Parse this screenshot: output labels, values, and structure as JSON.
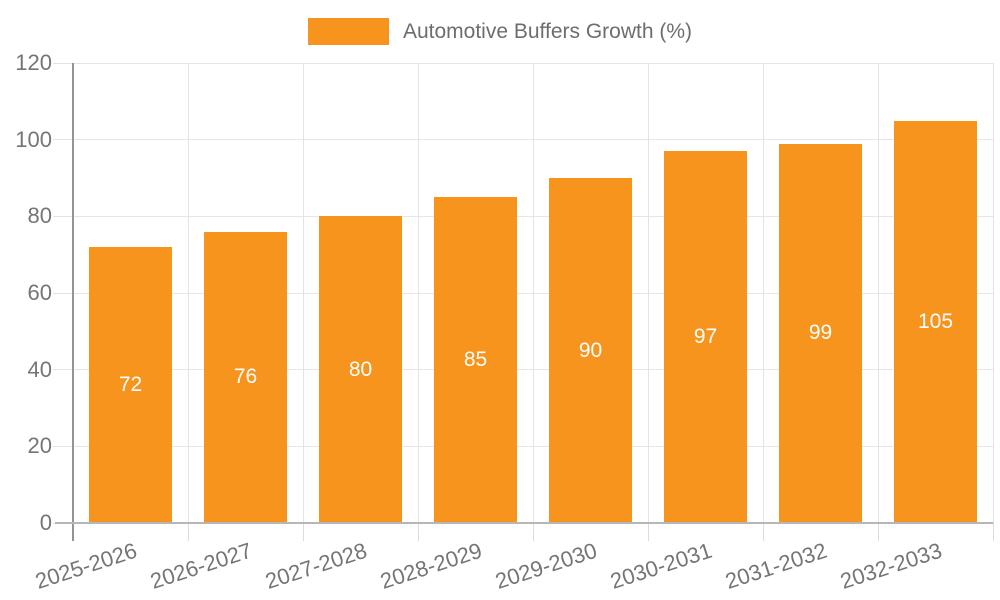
{
  "legend": {
    "label": "Automotive Buffers Growth (%)"
  },
  "chart_data": {
    "type": "bar",
    "title": "",
    "categories": [
      "2025-2026",
      "2026-2027",
      "2027-2028",
      "2028-2029",
      "2029-2030",
      "2030-2031",
      "2031-2032",
      "2032-2033"
    ],
    "series": [
      {
        "name": "Automotive Buffers Growth (%)",
        "color": "#F7941E",
        "values": [
          72,
          76,
          80,
          85,
          90,
          97,
          99,
          105
        ]
      }
    ],
    "xlabel": "",
    "ylabel": "",
    "ylim": [
      0,
      120
    ],
    "yticks": [
      0,
      20,
      40,
      60,
      80,
      100,
      120
    ],
    "grid": true,
    "legend_position": "top-center",
    "bar_value_labels": {
      "position": "inside-center",
      "color": "#ffffff"
    }
  },
  "colors": {
    "bar": "#F7941E",
    "axis_text": "#757575",
    "legend_text": "#6d6d6d",
    "gridline": "#e6e6e6",
    "y_axis_line": "#949494",
    "x_axis_line": "#b6b6b6",
    "background": "#ffffff"
  }
}
